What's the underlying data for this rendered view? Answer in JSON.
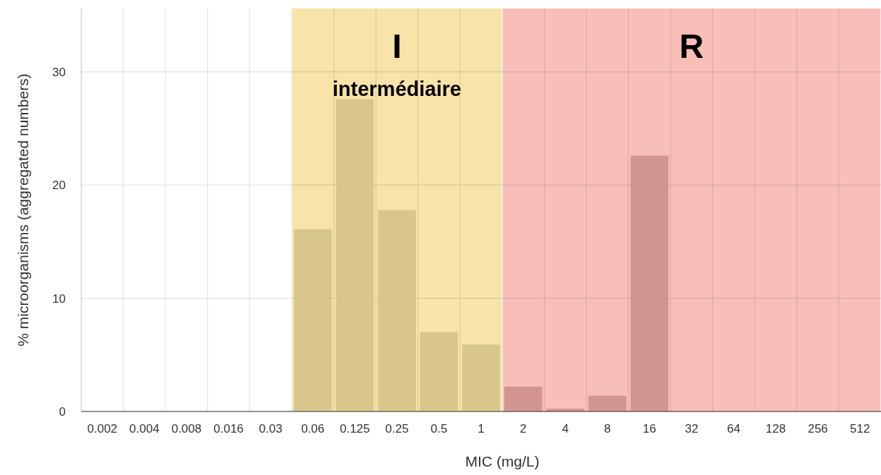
{
  "chart_data": {
    "type": "bar",
    "xlabel": "MIC (mg/L)",
    "ylabel": "% microorganisms (aggregated numbers)",
    "categories": [
      "0.002",
      "0.004",
      "0.008",
      "0.016",
      "0.03",
      "0.06",
      "0.125",
      "0.25",
      "0.5",
      "1",
      "2",
      "4",
      "8",
      "16",
      "32",
      "64",
      "128",
      "256",
      "512"
    ],
    "values": [
      0,
      0,
      0,
      0,
      0,
      16.1,
      27.6,
      17.8,
      7.0,
      5.9,
      2.2,
      0.25,
      1.4,
      22.6,
      0,
      0,
      0,
      0,
      0
    ],
    "colors": [
      "#d8c68a",
      "#d8c68a",
      "#d8c68a",
      "#d8c68a",
      "#d8c68a",
      "#d8c68a",
      "#d8c68a",
      "#d8c68a",
      "#d8c68a",
      "#d8c68a",
      "#d29590",
      "#d29590",
      "#d29590",
      "#d29590",
      "#d29590",
      "#d29590",
      "#d29590",
      "#d29590",
      "#d29590"
    ],
    "ylim": [
      0,
      35.6
    ],
    "yticks": [
      0,
      10,
      20,
      30
    ],
    "grid": true,
    "bands": [
      {
        "axis": "x",
        "from": "0.06",
        "to": "1",
        "label": "I",
        "color": "#f8e3a8"
      },
      {
        "axis": "x",
        "from": "2",
        "to": "512",
        "label": "R",
        "color": "#f8bfb9"
      }
    ],
    "annotations": [
      "intermédiaire"
    ]
  }
}
